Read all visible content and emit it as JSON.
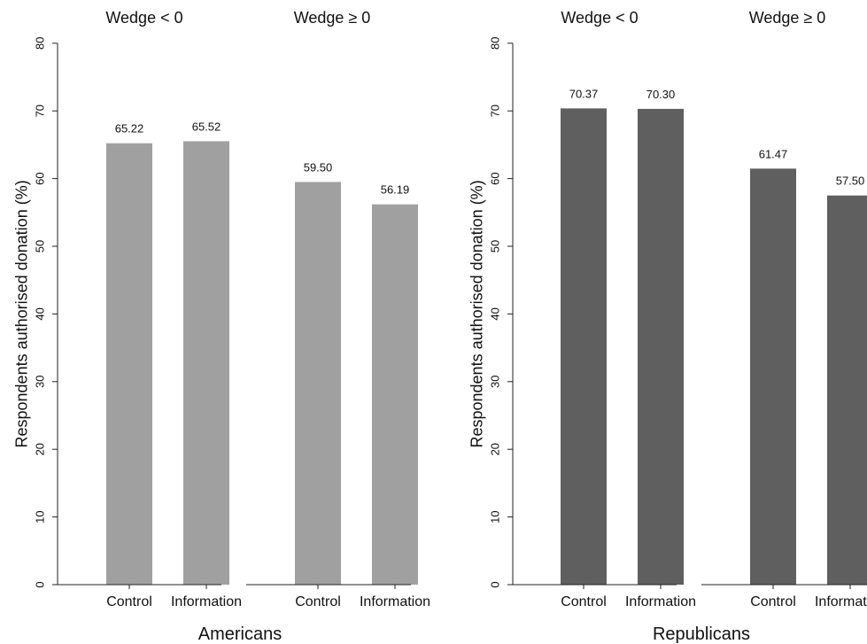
{
  "chart_data": [
    {
      "type": "bar",
      "group_label": "Americans",
      "ylabel": "Respondents authorised donation (%)",
      "ylim": [
        0,
        80
      ],
      "yticks": [
        0,
        10,
        20,
        30,
        40,
        50,
        60,
        70,
        80
      ],
      "grid": false,
      "bar_color": "#a0a0a0",
      "panels": [
        {
          "title": "Wedge <  0",
          "categories": [
            "Control",
            "Information"
          ],
          "values": [
            65.22,
            65.52
          ],
          "value_labels": [
            "65.22",
            "65.52"
          ]
        },
        {
          "title": "Wedge ≥ 0",
          "categories": [
            "Control",
            "Information"
          ],
          "values": [
            59.5,
            56.19
          ],
          "value_labels": [
            "59.50",
            "56.19"
          ]
        }
      ]
    },
    {
      "type": "bar",
      "group_label": "Republicans",
      "ylabel": "Respondents authorised donation (%)",
      "ylim": [
        0,
        80
      ],
      "yticks": [
        0,
        10,
        20,
        30,
        40,
        50,
        60,
        70,
        80
      ],
      "grid": false,
      "bar_color": "#5f5f5f",
      "panels": [
        {
          "title": "Wedge < 0",
          "categories": [
            "Control",
            "Information"
          ],
          "values": [
            70.37,
            70.3
          ],
          "value_labels": [
            "70.37",
            "70.30"
          ]
        },
        {
          "title": "Wedge ≥ 0",
          "categories": [
            "Control",
            "Information"
          ],
          "values": [
            61.47,
            57.5
          ],
          "value_labels": [
            "61.47",
            "57.50"
          ]
        }
      ]
    }
  ]
}
